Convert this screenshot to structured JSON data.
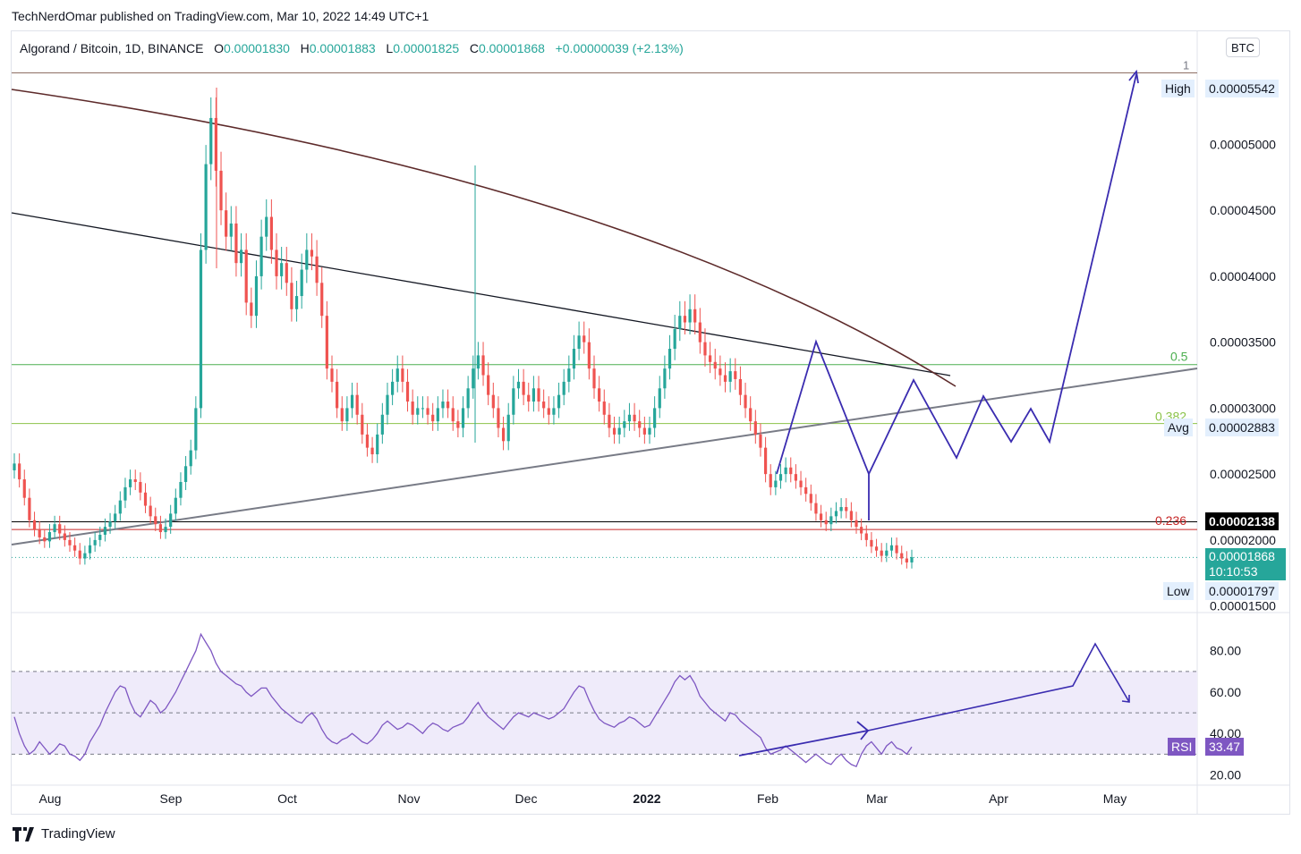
{
  "header": {
    "publisher_line": "TechNerdOmar published on TradingView.com, Mar 10, 2022 14:49 UTC+1"
  },
  "legend": {
    "symbol": "Algorand / Bitcoin, 1D, BINANCE",
    "o_label": "O",
    "o_value": "0.00001830",
    "h_label": "H",
    "h_value": "0.00001883",
    "l_label": "L",
    "l_value": "0.00001825",
    "c_label": "C",
    "c_value": "0.00001868",
    "change": "+0.00000039 (+2.13%)"
  },
  "currency_button": "BTC",
  "footer": {
    "brand": "TradingView"
  },
  "badges": {
    "high_label": "High",
    "high_value": "0.00005542",
    "avg_label": "Avg",
    "avg_value": "0.00002883",
    "level_value": "0.00002138",
    "last_value": "0.00001868",
    "countdown": "10:10:53",
    "low_label": "Low",
    "low_value": "0.00001797",
    "rsi_label": "RSI",
    "rsi_value": "33.47"
  },
  "fib_labels": {
    "top": "1",
    "mid": "0.5",
    "avg": "0.382",
    "low": "0.236"
  },
  "colors": {
    "up": "#26a69a",
    "down": "#ef5350",
    "navy": "#3a2cb0",
    "fib_green": "#4caf50",
    "fib_red": "#c62828",
    "rsi_line": "#7e57c2",
    "rsi_band": "#efebfa"
  },
  "chart_data": [
    {
      "type": "candlestick",
      "title": "Algorand / Bitcoin, 1D, BINANCE",
      "y_axis_ticks": [
        "0.00005000",
        "0.00004500",
        "0.00004000",
        "0.00003500",
        "0.00003000",
        "0.00002500",
        "0.00002000",
        "0.00001500"
      ],
      "x_axis_ticks": [
        "Aug",
        "Sep",
        "Oct",
        "Nov",
        "Dec",
        "2022",
        "Feb",
        "Mar",
        "Apr",
        "May"
      ],
      "ylim": [
        1.45e-05,
        5.62e-05
      ],
      "series": [
        {
          "values": [
            2.58e-05,
            2.46e-05,
            2.32e-05,
            2.15e-05,
            2.08e-05,
            2.02e-05,
            1.99e-05,
            2.06e-05,
            2.12e-05,
            2.05e-05,
            2e-05,
            1.96e-05,
            1.92e-05,
            1.86e-05,
            1.9e-05,
            1.96e-05,
            2e-05,
            2.04e-05,
            2.1e-05,
            2.14e-05,
            2.2e-05,
            2.3e-05,
            2.4e-05,
            2.46e-05,
            2.44e-05,
            2.36e-05,
            2.26e-05,
            2.18e-05,
            2.12e-05,
            2.06e-05,
            2.1e-05,
            2.2e-05,
            2.32e-05,
            2.44e-05,
            2.56e-05,
            2.68e-05,
            3e-05,
            4.2e-05,
            4.85e-05,
            5.2e-05,
            4.8e-05,
            4.5e-05,
            4.3e-05,
            4.4e-05,
            4.1e-05,
            4.2e-05,
            3.8e-05,
            3.7e-05,
            4e-05,
            4.3e-05,
            4.45e-05,
            4.2e-05,
            4e-05,
            4.1e-05,
            3.95e-05,
            3.75e-05,
            3.85e-05,
            4.05e-05,
            4.2e-05,
            4.15e-05,
            3.95e-05,
            3.7e-05,
            3.3e-05,
            3.2e-05,
            3e-05,
            2.9e-05,
            3e-05,
            3.1e-05,
            2.95e-05,
            2.8e-05,
            2.7e-05,
            2.65e-05,
            2.8e-05,
            2.95e-05,
            3.1e-05,
            3.2e-05,
            3.3e-05,
            3.2e-05,
            3.05e-05,
            2.95e-05,
            3e-05,
            3e-05,
            2.95e-05,
            2.9e-05,
            3e-05,
            3.05e-05,
            3e-05,
            2.9e-05,
            2.85e-05,
            3e-05,
            3.15e-05,
            3.3e-05,
            3.4e-05,
            3.25e-05,
            3.1e-05,
            3e-05,
            2.85e-05,
            2.75e-05,
            2.95e-05,
            3.15e-05,
            3.2e-05,
            3.1e-05,
            3.05e-05,
            3.15e-05,
            3.05e-05,
            3e-05,
            2.95e-05,
            3e-05,
            3.1e-05,
            3.2e-05,
            3.3e-05,
            3.45e-05,
            3.55e-05,
            3.5e-05,
            3.3e-05,
            3.15e-05,
            3.05e-05,
            2.95e-05,
            2.85e-05,
            2.8e-05,
            2.85e-05,
            2.9e-05,
            2.95e-05,
            2.9e-05,
            2.85e-05,
            2.8e-05,
            2.85e-05,
            3e-05,
            3.15e-05,
            3.3e-05,
            3.45e-05,
            3.6e-05,
            3.7e-05,
            3.65e-05,
            3.75e-05,
            3.65e-05,
            3.5e-05,
            3.4e-05,
            3.35e-05,
            3.3e-05,
            3.25e-05,
            3.2e-05,
            3.28e-05,
            3.22e-05,
            3.1e-05,
            3e-05,
            2.9e-05,
            2.8e-05,
            2.7e-05,
            2.5e-05,
            2.4e-05,
            2.45e-05,
            2.5e-05,
            2.55e-05,
            2.5e-05,
            2.45e-05,
            2.4e-05,
            2.35e-05,
            2.28e-05,
            2.2e-05,
            2.15e-05,
            2.12e-05,
            2.18e-05,
            2.22e-05,
            2.25e-05,
            2.22e-05,
            2.15e-05,
            2.1e-05,
            2.05e-05,
            2e-05,
            1.95e-05,
            1.92e-05,
            1.88e-05,
            1.92e-05,
            1.96e-05,
            1.9e-05,
            1.86e-05,
            1.83e-05,
            1.87e-05
          ]
        }
      ]
    },
    {
      "type": "line",
      "title": "RSI",
      "y_axis_ticks": [
        "80.00",
        "60.00",
        "40.00",
        "20.00"
      ],
      "ylim": [
        15,
        92
      ],
      "bands": [
        30,
        50,
        70
      ],
      "series": [
        {
          "name": "RSI",
          "values": [
            48,
            40,
            34,
            30,
            32,
            36,
            33,
            30,
            32,
            35,
            34,
            30,
            29,
            27,
            30,
            36,
            40,
            44,
            50,
            55,
            60,
            63,
            62,
            55,
            50,
            48,
            52,
            56,
            54,
            50,
            52,
            56,
            60,
            65,
            70,
            75,
            80,
            88,
            84,
            80,
            74,
            70,
            68,
            66,
            64,
            63,
            60,
            58,
            60,
            62,
            62,
            58,
            55,
            52,
            50,
            48,
            46,
            45,
            48,
            50,
            47,
            42,
            38,
            36,
            35,
            37,
            38,
            40,
            38,
            36,
            35,
            37,
            40,
            44,
            46,
            44,
            42,
            43,
            45,
            44,
            42,
            40,
            43,
            45,
            44,
            42,
            41,
            43,
            44,
            45,
            48,
            52,
            55,
            51,
            48,
            46,
            44,
            42,
            45,
            48,
            50,
            49,
            48,
            50,
            49,
            48,
            47,
            48,
            50,
            52,
            56,
            60,
            63,
            62,
            56,
            51,
            47,
            45,
            44,
            43,
            45,
            46,
            48,
            47,
            45,
            43,
            44,
            48,
            52,
            56,
            60,
            65,
            68,
            66,
            68,
            64,
            58,
            55,
            52,
            50,
            48,
            46,
            50,
            49,
            46,
            44,
            42,
            40,
            38,
            33,
            30,
            31,
            32,
            34,
            32,
            30,
            28,
            26,
            28,
            30,
            28,
            26,
            25,
            28,
            30,
            27,
            25,
            24,
            30,
            34,
            36,
            33,
            30,
            34,
            36,
            33,
            32,
            30,
            33.47
          ]
        }
      ]
    }
  ]
}
